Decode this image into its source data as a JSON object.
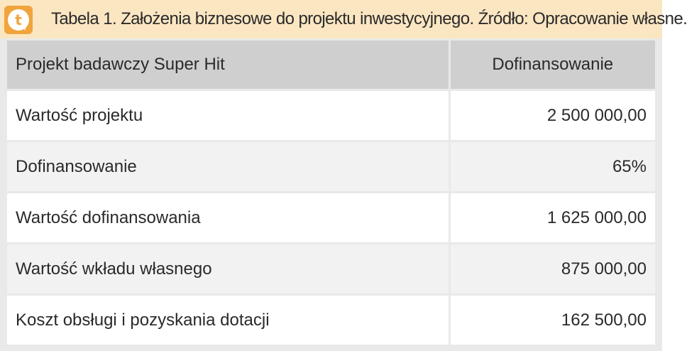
{
  "caption": {
    "logo_letter": "t",
    "text": "Tabela 1. Założenia biznesowe do projektu inwestycyjnego. Źródło: Opracowanie własne."
  },
  "table": {
    "headers": [
      "Projekt badawczy Super Hit",
      "Dofinansowanie"
    ],
    "rows": [
      {
        "label": "Wartość projektu",
        "value": "2 500 000,00"
      },
      {
        "label": "Dofinansowanie",
        "value": "65%"
      },
      {
        "label": "Wartość dofinansowania",
        "value": "1 625 000,00"
      },
      {
        "label": "Wartość wkładu własnego",
        "value": "875 000,00"
      },
      {
        "label": "Koszt obsługi i pozyskania dotacji",
        "value": "162 500,00"
      }
    ]
  },
  "colors": {
    "caption_bg": "#fbe6c2",
    "logo_orange": "#f0a43c",
    "header_bg": "#cfcfcf",
    "row_alt_bg": "#f2f2f2"
  }
}
